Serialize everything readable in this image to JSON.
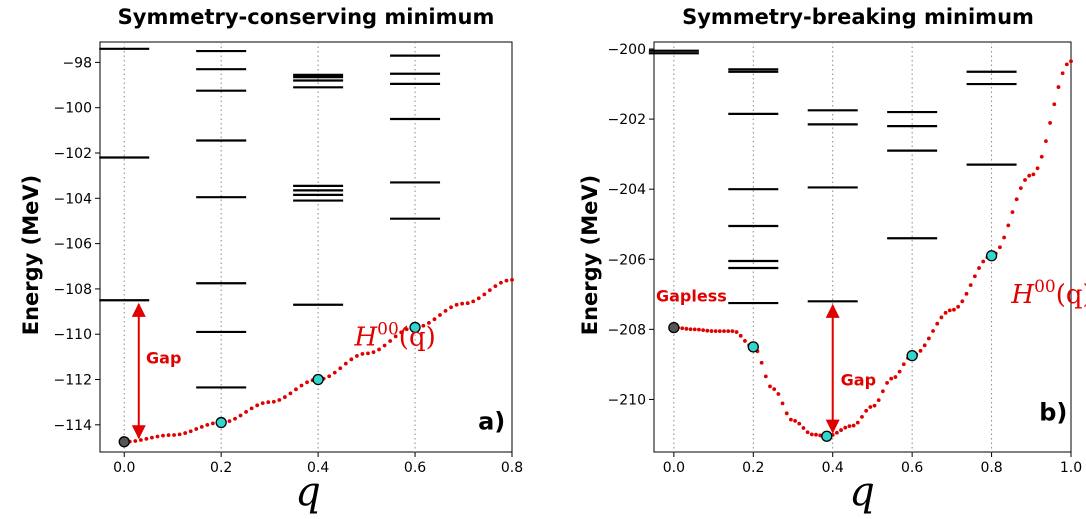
{
  "chart_data": [
    {
      "type": "line",
      "title": "Symmetry-conserving minimum",
      "xlabel": "q",
      "ylabel": "Energy (MeV)",
      "xlim": [
        -0.05,
        0.8
      ],
      "ylim": [
        -115.2,
        -97.1
      ],
      "xticks": [
        0.0,
        0.2,
        0.4,
        0.6,
        0.8
      ],
      "xtick_labels": [
        "0.0",
        "0.2",
        "0.4",
        "0.6",
        "0.8"
      ],
      "yticks": [
        -114,
        -112,
        -110,
        -108,
        -106,
        -104,
        -102,
        -100,
        -98
      ],
      "ytick_labels": [
        "−114",
        "−112",
        "−110",
        "−108",
        "−106",
        "−104",
        "−102",
        "−100",
        "−98"
      ],
      "grid": "vertical dotted at q = 0, 0.2, 0.4, 0.6",
      "curve": {
        "style": "red dotted",
        "x": [
          0.0,
          0.1,
          0.2,
          0.3,
          0.4,
          0.5,
          0.6,
          0.7,
          0.8
        ],
        "y": [
          -114.75,
          -114.45,
          -113.9,
          -113.0,
          -112.0,
          -110.85,
          -109.7,
          -108.65,
          -107.6
        ]
      },
      "curve_points": {
        "x": [
          0.0,
          0.2,
          0.4,
          0.6
        ],
        "y": [
          -114.75,
          -113.9,
          -112.0,
          -109.7
        ]
      },
      "levels": [
        {
          "q": 0.0,
          "energies": [
            -97.4,
            -102.2,
            -108.5
          ]
        },
        {
          "q": 0.2,
          "energies": [
            -97.5,
            -98.3,
            -99.25,
            -101.45,
            -103.95,
            -107.75,
            -109.9,
            -112.35
          ]
        },
        {
          "q": 0.4,
          "energies": [
            -98.55,
            -98.65,
            -98.8,
            -99.1,
            -103.45,
            -103.65,
            -103.85,
            -104.1,
            -108.7
          ]
        },
        {
          "q": 0.6,
          "energies": [
            -97.7,
            -98.5,
            -98.95,
            -100.5,
            -103.3,
            -104.9
          ]
        }
      ],
      "gap_arrow": {
        "q": 0.03,
        "from": -114.75,
        "to": -108.5
      },
      "annotations": {
        "gap": "Gap",
        "hamiltonian_base": "H",
        "hamiltonian_sup": "00",
        "hamiltonian_arg": "(q)",
        "panel": "a)"
      }
    },
    {
      "type": "line",
      "title": "Symmetry-breaking minimum",
      "xlabel": "q",
      "ylabel": "Energy (MeV)",
      "xlim": [
        -0.05,
        1.0
      ],
      "ylim": [
        -211.5,
        -199.8
      ],
      "xticks": [
        0.0,
        0.2,
        0.4,
        0.6,
        0.8,
        1.0
      ],
      "xtick_labels": [
        "0.0",
        "0.2",
        "0.4",
        "0.6",
        "0.8",
        "1.0"
      ],
      "yticks": [
        -210,
        -208,
        -206,
        -204,
        -202,
        -200
      ],
      "ytick_labels": [
        "−210",
        "−208",
        "−206",
        "−204",
        "−202",
        "−200"
      ],
      "grid": "vertical dotted at q = 0, 0.2, 0.4, 0.6, 0.8",
      "curve": {
        "style": "red dotted",
        "x": [
          0.0,
          0.05,
          0.1,
          0.15,
          0.2,
          0.25,
          0.3,
          0.35,
          0.385,
          0.45,
          0.5,
          0.55,
          0.6,
          0.7,
          0.8,
          0.9,
          1.0
        ],
        "y": [
          -207.95,
          -208.0,
          -208.05,
          -208.05,
          -208.5,
          -209.7,
          -210.6,
          -211.0,
          -211.05,
          -210.75,
          -210.2,
          -209.4,
          -208.75,
          -207.45,
          -205.9,
          -203.6,
          -200.35
        ]
      },
      "curve_points": {
        "x": [
          0.0,
          0.2,
          0.385,
          0.6,
          0.8
        ],
        "y": [
          -207.95,
          -208.5,
          -211.05,
          -208.75,
          -205.9
        ]
      },
      "levels": [
        {
          "q": 0.0,
          "energies": [
            -200.05,
            -200.12
          ]
        },
        {
          "q": 0.2,
          "energies": [
            -200.58,
            -200.65,
            -201.85,
            -204.0,
            -205.05,
            -206.05,
            -206.25,
            -207.25
          ]
        },
        {
          "q": 0.4,
          "energies": [
            -201.75,
            -202.15,
            -203.95,
            -207.2
          ]
        },
        {
          "q": 0.6,
          "energies": [
            -201.8,
            -202.2,
            -202.9,
            -205.4
          ]
        },
        {
          "q": 0.8,
          "energies": [
            -200.65,
            -201.0,
            -203.3
          ]
        }
      ],
      "gap_arrow": {
        "q": 0.4,
        "from": -211.05,
        "to": -207.2
      },
      "annotations": {
        "gapless": "Gapless",
        "gap": "Gap",
        "hamiltonian_base": "H",
        "hamiltonian_sup": "00",
        "hamiltonian_arg": "(q)",
        "panel": "b)"
      }
    }
  ]
}
